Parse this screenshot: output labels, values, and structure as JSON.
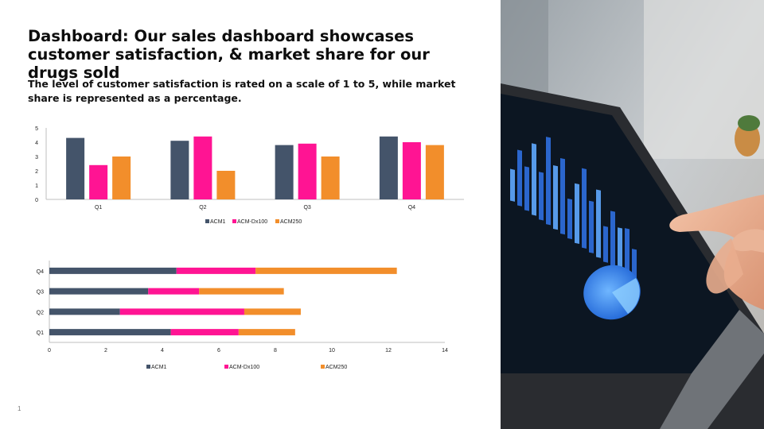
{
  "slide": {
    "title": "Dashboard: Our sales dashboard showcases customer satisfaction, & market share for our drugs sold",
    "subtitle": "The level of customer satisfaction is rated on a scale of 1 to 5, while market share is represented as a percentage.",
    "page_number": "1"
  },
  "photo": {
    "description_icon": "tablet-dashboard-photo"
  },
  "colors": {
    "ACM1": "#44546a",
    "ACM-Dx100": "#ff1493",
    "ACM250": "#f28e2b"
  },
  "chart_data": [
    {
      "type": "bar",
      "categories": [
        "Q1",
        "Q2",
        "Q3",
        "Q4"
      ],
      "series": [
        {
          "name": "ACM1",
          "values": [
            4.3,
            4.1,
            3.8,
            4.4
          ]
        },
        {
          "name": "ACM-Dx100",
          "values": [
            2.4,
            4.4,
            3.9,
            4.0
          ]
        },
        {
          "name": "ACM250",
          "values": [
            3.0,
            2.0,
            3.0,
            3.8
          ]
        }
      ],
      "ylim": [
        0,
        5
      ],
      "yticks": [
        "0",
        "1",
        "2",
        "3",
        "4",
        "5"
      ],
      "legend_position": "bottom",
      "grid": false
    },
    {
      "type": "bar",
      "orientation": "horizontal",
      "stacked": true,
      "categories": [
        "Q1",
        "Q2",
        "Q3",
        "Q4"
      ],
      "series": [
        {
          "name": "ACM1",
          "values": [
            4.3,
            2.5,
            3.5,
            4.5
          ]
        },
        {
          "name": "ACM-Dx100",
          "values": [
            2.4,
            4.4,
            1.8,
            2.8
          ]
        },
        {
          "name": "ACM250",
          "values": [
            2.0,
            2.0,
            3.0,
            5.0
          ]
        }
      ],
      "xlim": [
        0,
        14
      ],
      "xticks": [
        "0",
        "2",
        "4",
        "6",
        "8",
        "10",
        "12",
        "14"
      ],
      "legend_position": "bottom",
      "grid": false
    }
  ]
}
